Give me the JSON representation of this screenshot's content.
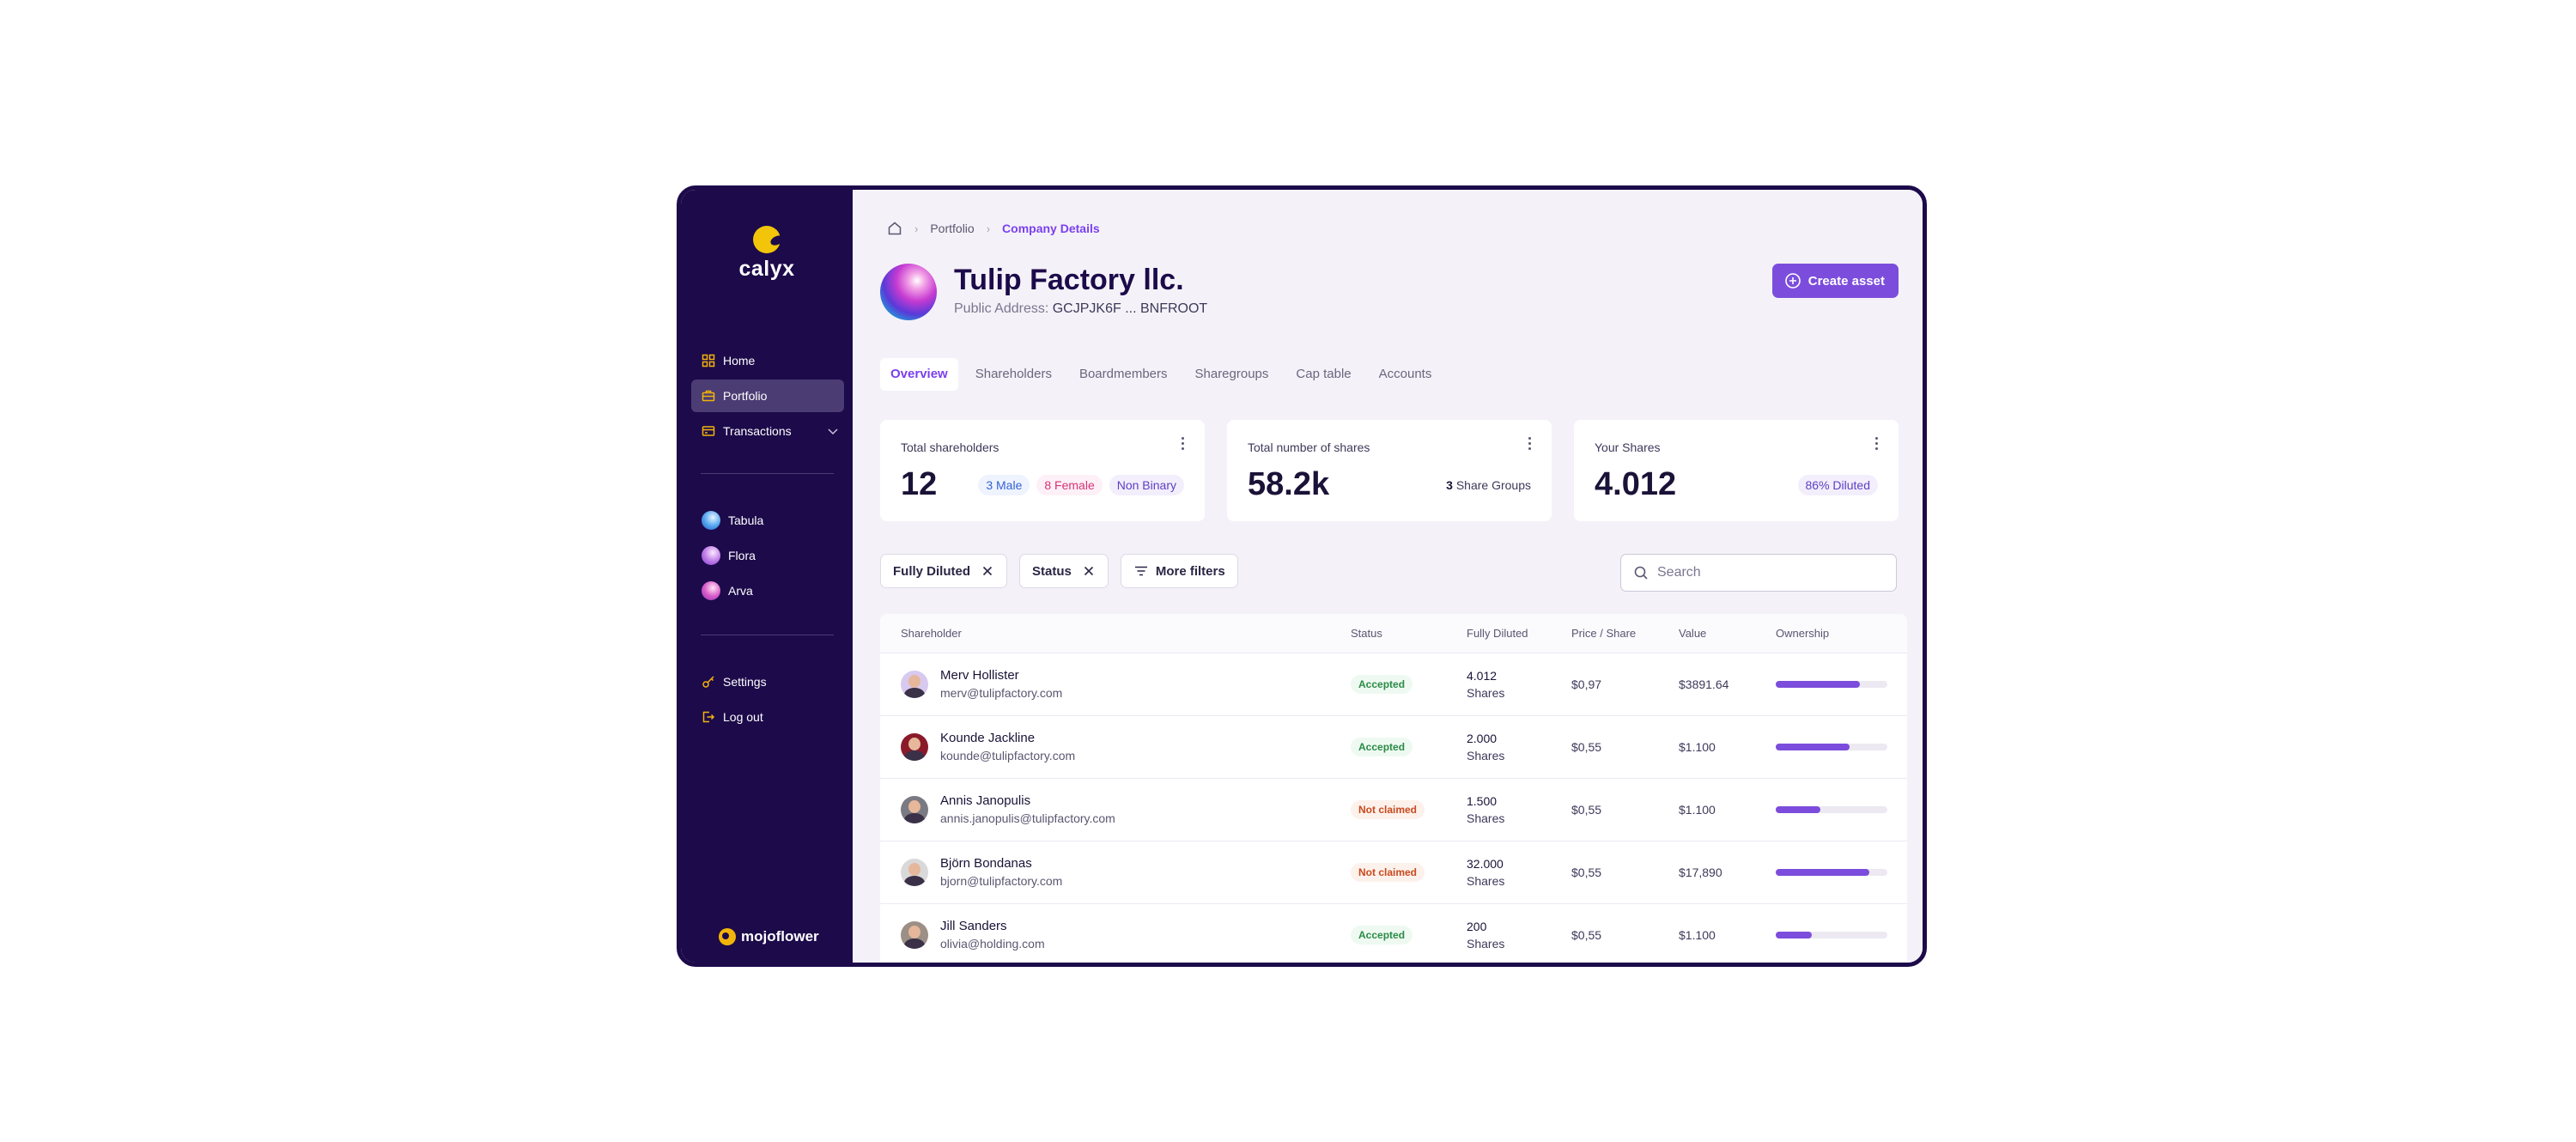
{
  "brand": {
    "name": "calyx",
    "footer": "mojoflower"
  },
  "sidebar": {
    "nav": [
      {
        "label": "Home",
        "icon": "grid-icon"
      },
      {
        "label": "Portfolio",
        "icon": "briefcase-icon",
        "active": true
      },
      {
        "label": "Transactions",
        "icon": "card-icon",
        "expandable": true
      }
    ],
    "companies": [
      {
        "label": "Tabula",
        "color": "#3b8be0"
      },
      {
        "label": "Flora",
        "color": "#a65bd8"
      },
      {
        "label": "Arva",
        "color": "#c04fc7"
      }
    ],
    "bottom": [
      {
        "label": "Settings",
        "icon": "key-icon"
      },
      {
        "label": "Log out",
        "icon": "logout-icon"
      }
    ]
  },
  "breadcrumb": {
    "items": [
      "Portfolio",
      "Company Details"
    ]
  },
  "company": {
    "name": "Tulip Factory llc.",
    "address_label": "Public Address:",
    "address_value": "GCJPJK6F ... BNFROOT"
  },
  "actions": {
    "create_asset": "Create asset"
  },
  "tabs": [
    "Overview",
    "Shareholders",
    "Boardmembers",
    "Sharegroups",
    "Cap table",
    "Accounts"
  ],
  "stats": {
    "shareholders": {
      "title": "Total shareholders",
      "value": "12",
      "pills": [
        "3 Male",
        "8 Female",
        "Non Binary"
      ]
    },
    "shares": {
      "title": "Total number of shares",
      "value": "58.2k",
      "groups_count": "3",
      "groups_label": "Share Groups"
    },
    "your_shares": {
      "title": "Your Shares",
      "value": "4.012",
      "pill": "86% Diluted"
    }
  },
  "filters": {
    "fully_diluted": "Fully Diluted",
    "status": "Status",
    "more": "More filters"
  },
  "search": {
    "placeholder": "Search"
  },
  "table": {
    "headers": [
      "Shareholder",
      "Status",
      "Fully Diluted",
      "Price / Share",
      "Value",
      "Ownership"
    ],
    "rows": [
      {
        "name": "Merv Hollister",
        "email": "merv@tulipfactory.com",
        "status": "Accepted",
        "status_type": "ok",
        "shares": "4.012",
        "shares_label": "Shares",
        "price": "$0,97",
        "value": "$3891.64",
        "ownership": 0.75
      },
      {
        "name": "Kounde Jackline",
        "email": "kounde@tulipfactory.com",
        "status": "Accepted",
        "status_type": "ok",
        "shares": "2.000",
        "shares_label": "Shares",
        "price": "$0,55",
        "value": "$1.100",
        "ownership": 0.66
      },
      {
        "name": "Annis Janopulis",
        "email": "annis.janopulis@tulipfactory.com",
        "status": "Not claimed",
        "status_type": "no",
        "shares": "1.500",
        "shares_label": "Shares",
        "price": "$0,55",
        "value": "$1.100",
        "ownership": 0.4
      },
      {
        "name": "Björn Bondanas",
        "email": "bjorn@tulipfactory.com",
        "status": "Not claimed",
        "status_type": "no",
        "shares": "32.000",
        "shares_label": "Shares",
        "price": "$0,55",
        "value": "$17,890",
        "ownership": 0.84
      },
      {
        "name": "Jill Sanders",
        "email": "olivia@holding.com",
        "status": "Accepted",
        "status_type": "ok",
        "shares": "200",
        "shares_label": "Shares",
        "price": "$0,55",
        "value": "$1.100",
        "ownership": 0.32
      }
    ]
  },
  "colors": {
    "accent": "#7c4ddc",
    "sidebar_bg": "#1c0a4a",
    "logo_yellow": "#f2c50a"
  }
}
